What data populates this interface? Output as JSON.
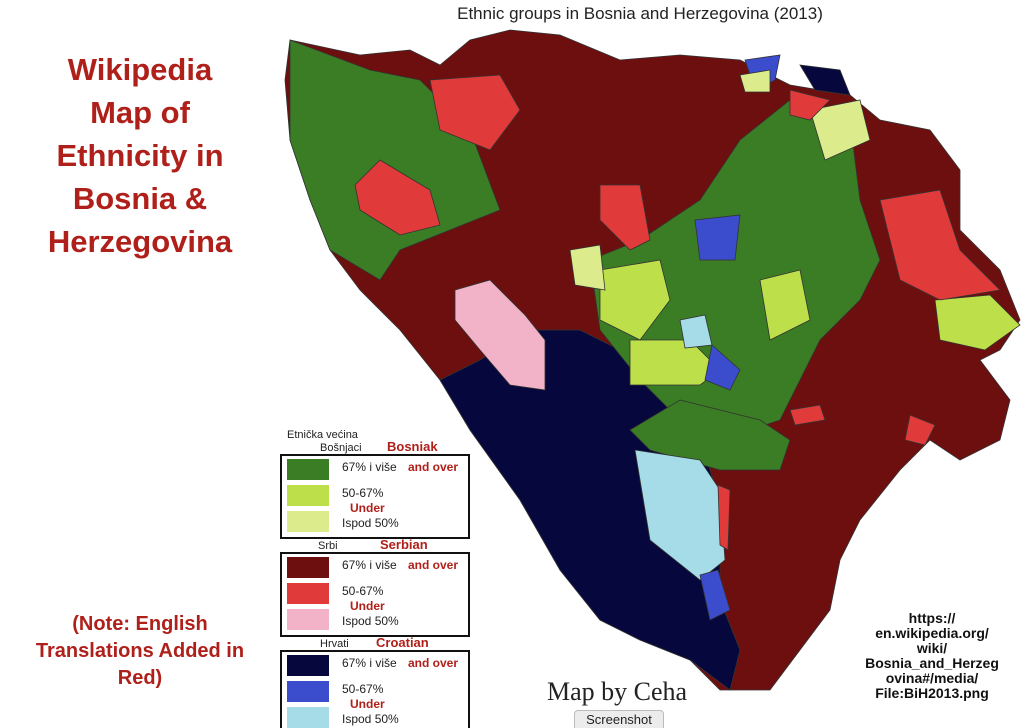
{
  "header": {
    "title_lines": [
      "Wikipedia",
      "Map of",
      "Ethnicity in",
      "Bosnia &",
      "Herzegovina"
    ]
  },
  "map": {
    "title": "Ethnic groups in Bosnia and Herzegovina (2013)",
    "credit": "Map by Ceha"
  },
  "legend": {
    "heading": "Etnička većina",
    "groups": [
      {
        "name": "Bošnjaci",
        "translation": "Bosniak",
        "items": [
          {
            "label": "67% i više",
            "translation": "and over",
            "color": "#3a7d24"
          },
          {
            "label": "50-67%",
            "translation": "Under",
            "color": "#bde04a"
          },
          {
            "label": "Ispod 50%",
            "color": "#dcec8c"
          }
        ]
      },
      {
        "name": "Srbi",
        "translation": "Serbian",
        "items": [
          {
            "label": "67% i više",
            "translation": "and over",
            "color": "#6e0f0f"
          },
          {
            "label": "50-67%",
            "translation": "Under",
            "color": "#e03a3a"
          },
          {
            "label": "Ispod 50%",
            "color": "#f2b3c8"
          }
        ]
      },
      {
        "name": "Hrvati",
        "translation": "Croatian",
        "items": [
          {
            "label": "67% i više",
            "translation": "and over",
            "color": "#06073d"
          },
          {
            "label": "50-67%",
            "translation": "Under",
            "color": "#3b4ccc"
          },
          {
            "label": "Ispod 50%",
            "color": "#a6dbe8"
          }
        ]
      }
    ]
  },
  "note": {
    "lines": [
      "(Note: English",
      "Translations Added in",
      "Red)"
    ]
  },
  "source": {
    "lines": [
      "https://",
      "en.wikipedia.org/",
      "wiki/",
      "Bosnia_and_Herzeg",
      "ovina#/media/",
      "File:BiH2013.png"
    ]
  },
  "toolbar": {
    "button": "Screenshot"
  }
}
